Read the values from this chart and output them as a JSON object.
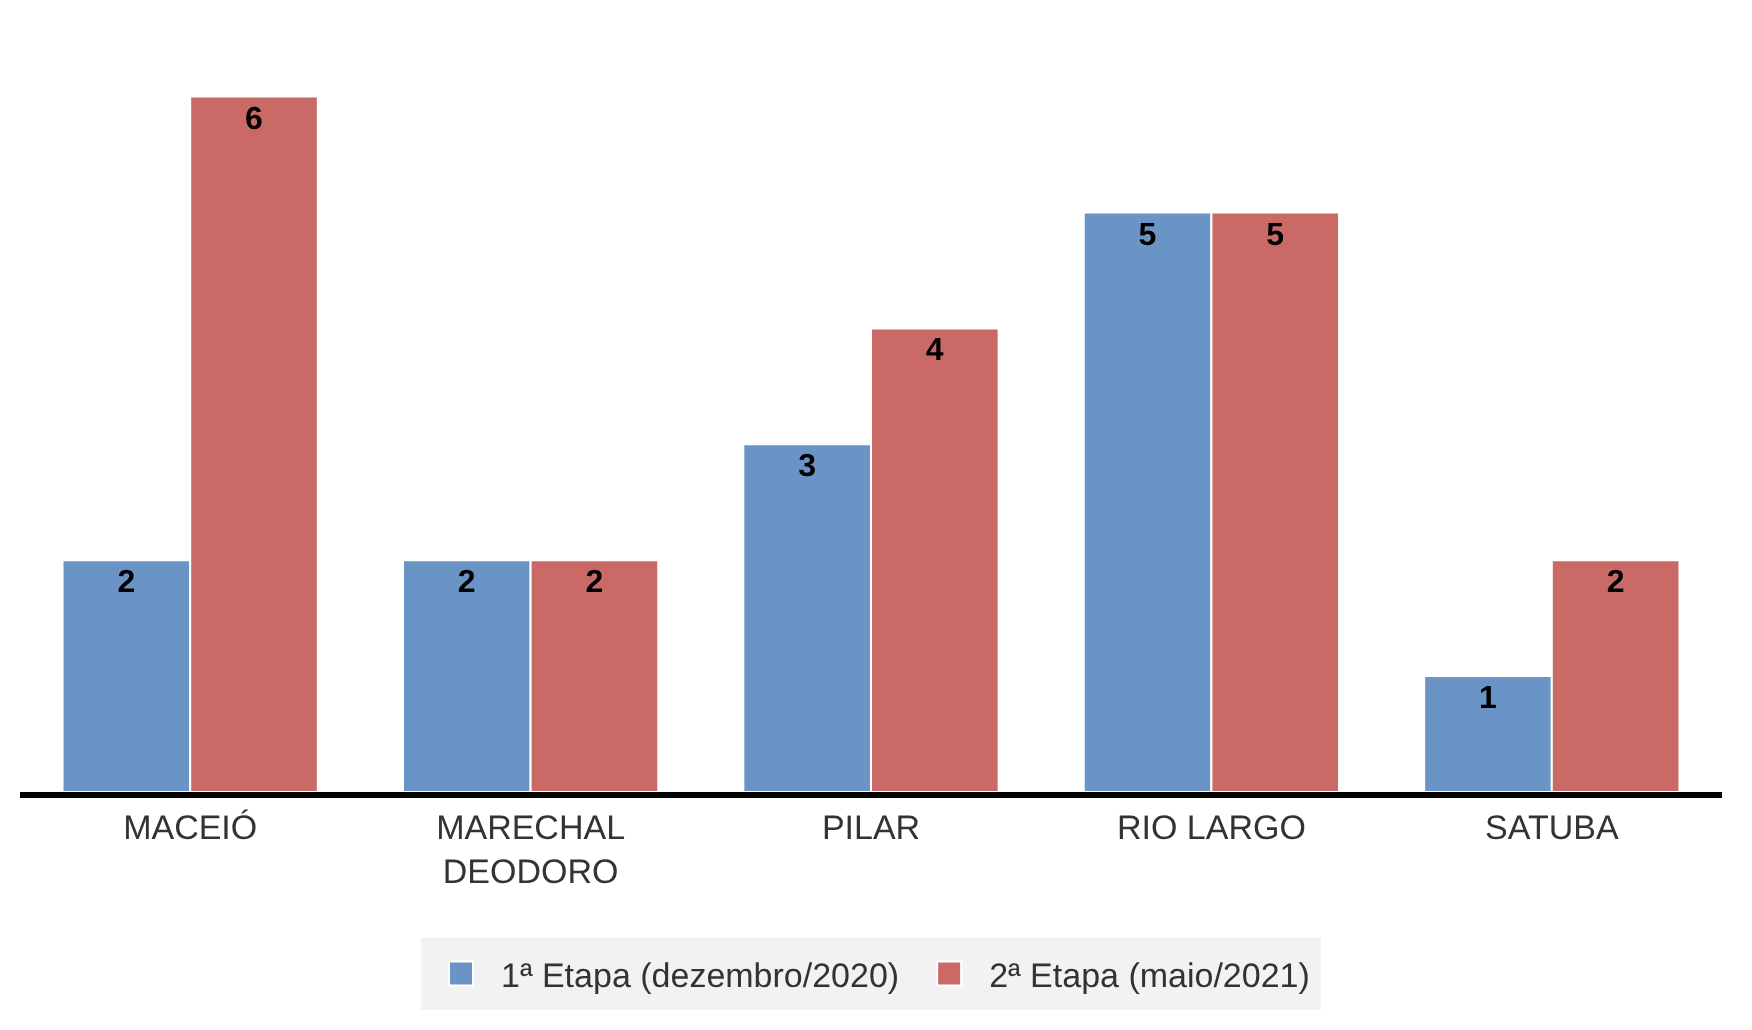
{
  "chart_data": {
    "type": "bar",
    "categories": [
      "MACEIÓ",
      "MARECHAL DEODORO",
      "PILAR",
      "RIO LARGO",
      "SATUBA"
    ],
    "series": [
      {
        "name": "1ª Etapa (dezembro/2020)",
        "color": "#6a93c6",
        "values": [
          2,
          2,
          3,
          5,
          1
        ]
      },
      {
        "name": "2ª Etapa (maio/2021)",
        "color": "#c96a67",
        "values": [
          6,
          2,
          4,
          5,
          2
        ]
      }
    ],
    "data_labels": true,
    "legend": "bottom"
  }
}
